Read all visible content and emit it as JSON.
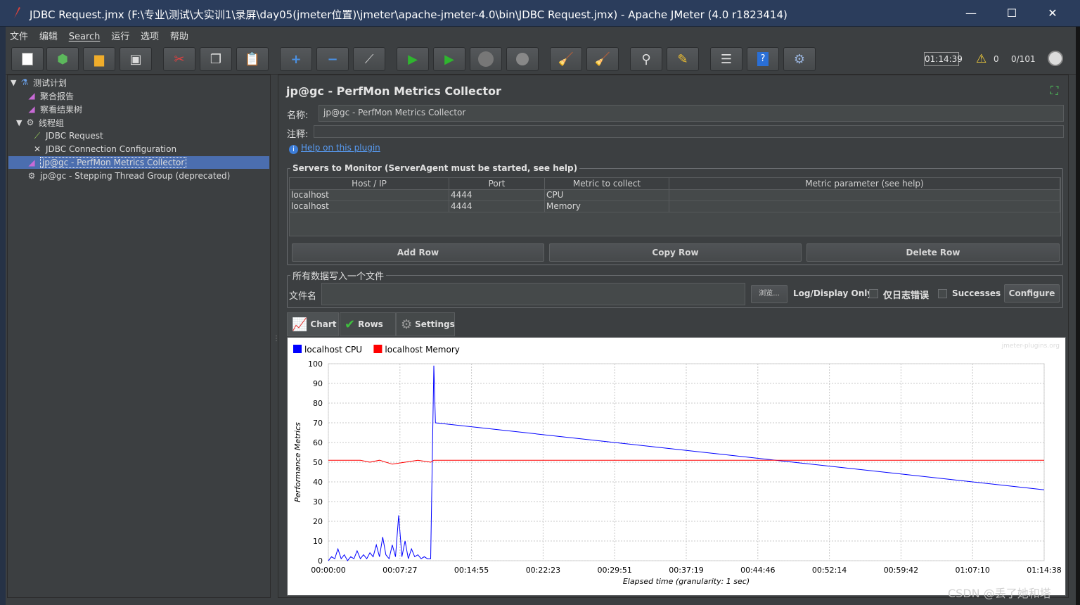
{
  "window": {
    "title": "JDBC Request.jmx (F:\\专业\\测试\\大实训1\\录屏\\day05(jmeter位置)\\jmeter\\apache-jmeter-4.0\\bin\\JDBC Request.jmx) - Apache JMeter (4.0 r1823414)",
    "minimize": "—",
    "maximize": "☐",
    "close": "✕"
  },
  "menu": [
    "文件",
    "编辑",
    "Search",
    "运行",
    "选项",
    "帮助"
  ],
  "toolbar": {
    "elapsed": "01:14:39",
    "warnings": "0",
    "threads": "0/101"
  },
  "tree": [
    {
      "label": "测试计划",
      "icon": "flask-icon"
    },
    {
      "label": "聚合报告",
      "icon": "graph-icon"
    },
    {
      "label": "察看结果树",
      "icon": "graph-icon"
    },
    {
      "label": "线程组",
      "icon": "gear-icon"
    },
    {
      "label": "JDBC Request",
      "icon": "pipette-icon"
    },
    {
      "label": "JDBC Connection Configuration",
      "icon": "tools-icon"
    },
    {
      "label": "jp@gc - PerfMon Metrics Collector",
      "icon": "graph-icon"
    },
    {
      "label": "jp@gc - Stepping Thread Group (deprecated)",
      "icon": "gear-icon"
    }
  ],
  "panel": {
    "title": "jp@gc - PerfMon Metrics Collector",
    "name_label": "名称:",
    "name_value": "jp@gc - PerfMon Metrics Collector",
    "comment_label": "注释:",
    "help_link": "Help on this plugin",
    "servers_legend": "Servers to Monitor (ServerAgent must be started, see help)",
    "columns": [
      "Host / IP",
      "Port",
      "Metric to collect",
      "Metric parameter (see help)"
    ],
    "rows": [
      [
        "localhost",
        "4444",
        "CPU",
        ""
      ],
      [
        "localhost",
        "4444",
        "Memory",
        ""
      ]
    ],
    "add_row": "Add Row",
    "copy_row": "Copy Row",
    "delete_row": "Delete Row",
    "file_legend": "所有数据写入一个文件",
    "file_label": "文件名",
    "browse": "浏览...",
    "log_display": "Log/Display Only:",
    "errors_only": "仅日志错误",
    "successes": "Successes",
    "configure": "Configure",
    "tabs": [
      {
        "label": "Chart",
        "icon": "chart-icon"
      },
      {
        "label": "Rows",
        "icon": "checkmark-icon"
      },
      {
        "label": "Settings",
        "icon": "gear-icon"
      }
    ]
  },
  "chart_data": {
    "type": "line",
    "watermark": "jmeter-plugins.org",
    "xlabel": "Elapsed time (granularity: 1 sec)",
    "ylabel": "Performance Metrics",
    "ylim": [
      0,
      100
    ],
    "yticks": [
      0,
      10,
      20,
      30,
      40,
      50,
      60,
      70,
      80,
      90,
      100
    ],
    "xticks": [
      "00:00:00",
      "00:07:27",
      "00:14:55",
      "00:22:23",
      "00:29:51",
      "00:37:19",
      "00:44:46",
      "00:52:14",
      "00:59:42",
      "01:07:10",
      "01:14:38"
    ],
    "xlim_seconds": [
      0,
      4478
    ],
    "legend_position": "top-left",
    "series": [
      {
        "name": "localhost CPU",
        "color": "#0000ff",
        "points": [
          [
            0,
            0
          ],
          [
            20,
            2
          ],
          [
            40,
            1
          ],
          [
            60,
            6
          ],
          [
            80,
            1
          ],
          [
            100,
            3
          ],
          [
            120,
            0
          ],
          [
            140,
            2
          ],
          [
            160,
            1
          ],
          [
            180,
            5
          ],
          [
            200,
            1
          ],
          [
            220,
            3
          ],
          [
            240,
            1
          ],
          [
            260,
            4
          ],
          [
            280,
            2
          ],
          [
            300,
            8
          ],
          [
            320,
            2
          ],
          [
            340,
            12
          ],
          [
            360,
            3
          ],
          [
            380,
            1
          ],
          [
            400,
            8
          ],
          [
            420,
            2
          ],
          [
            440,
            23
          ],
          [
            460,
            2
          ],
          [
            480,
            10
          ],
          [
            500,
            1
          ],
          [
            520,
            6
          ],
          [
            540,
            2
          ],
          [
            560,
            3
          ],
          [
            580,
            1
          ],
          [
            600,
            2
          ],
          [
            620,
            1
          ],
          [
            640,
            1
          ],
          [
            660,
            99
          ],
          [
            670,
            70
          ],
          [
            4478,
            36
          ]
        ]
      },
      {
        "name": "localhost Memory",
        "color": "#ff0000",
        "points": [
          [
            0,
            51
          ],
          [
            200,
            51
          ],
          [
            260,
            50
          ],
          [
            320,
            51
          ],
          [
            400,
            49
          ],
          [
            480,
            50
          ],
          [
            560,
            51
          ],
          [
            640,
            50
          ],
          [
            660,
            51
          ],
          [
            4478,
            51
          ]
        ]
      }
    ]
  },
  "watermark_text": "CSDN @丢了她和塔"
}
